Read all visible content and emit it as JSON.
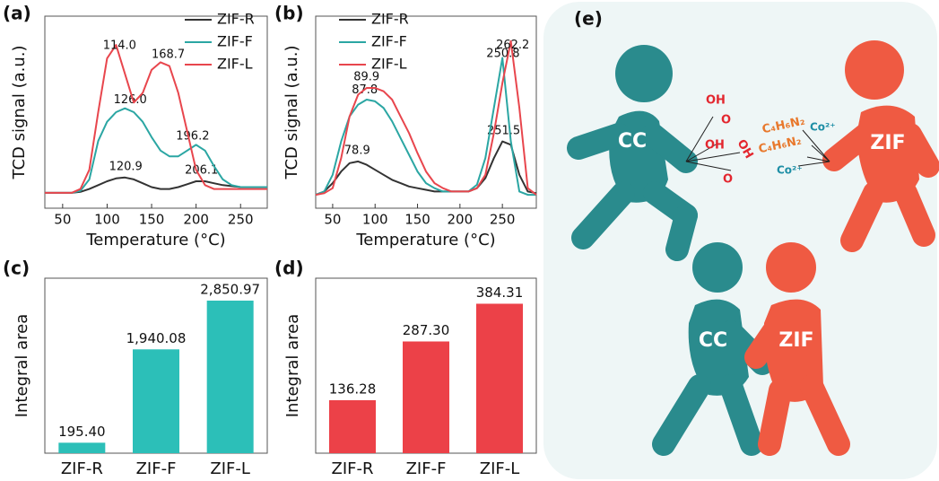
{
  "chart_data": [
    {
      "type": "line",
      "label": "(a)",
      "x_label": "Temperature (°C)",
      "y_label": "TCD signal (a.u.)",
      "x": [
        30,
        40,
        50,
        60,
        70,
        80,
        90,
        100,
        110,
        120,
        130,
        140,
        150,
        160,
        170,
        180,
        190,
        200,
        210,
        220,
        230,
        240,
        250,
        260,
        270,
        280
      ],
      "xlim": [
        30,
        280
      ],
      "xticks": [
        50,
        100,
        150,
        200,
        250
      ],
      "ylim": [
        0,
        1
      ],
      "legend": "upper right",
      "series": [
        {
          "name": "ZIF-R",
          "color": "#333333",
          "values": [
            0.08,
            0.08,
            0.08,
            0.08,
            0.085,
            0.1,
            0.12,
            0.14,
            0.155,
            0.16,
            0.15,
            0.13,
            0.11,
            0.1,
            0.1,
            0.11,
            0.125,
            0.14,
            0.14,
            0.13,
            0.12,
            0.115,
            0.11,
            0.11,
            0.11,
            0.11
          ],
          "peaks": [
            {
              "value": 120.9,
              "label": "120.9"
            },
            {
              "value": 206.1,
              "label": "206.1"
            }
          ]
        },
        {
          "name": "ZIF-F",
          "color": "#2ba6a3",
          "values": [
            0.08,
            0.08,
            0.08,
            0.08,
            0.09,
            0.15,
            0.35,
            0.45,
            0.5,
            0.52,
            0.5,
            0.45,
            0.37,
            0.3,
            0.27,
            0.27,
            0.3,
            0.33,
            0.3,
            0.22,
            0.15,
            0.12,
            0.11,
            0.11,
            0.11,
            0.11
          ],
          "peaks": [
            {
              "value": 126.0,
              "label": "126.0"
            },
            {
              "value": 196.2,
              "label": "196.2"
            }
          ]
        },
        {
          "name": "ZIF-L",
          "color": "#e8464d",
          "values": [
            0.08,
            0.08,
            0.08,
            0.08,
            0.1,
            0.2,
            0.5,
            0.78,
            0.85,
            0.7,
            0.55,
            0.6,
            0.72,
            0.76,
            0.74,
            0.6,
            0.4,
            0.2,
            0.12,
            0.1,
            0.1,
            0.1,
            0.1,
            0.1,
            0.1,
            0.1
          ],
          "peaks": [
            {
              "value": 114.0,
              "label": "114.0"
            },
            {
              "value": 168.7,
              "label": "168.7"
            }
          ]
        }
      ]
    },
    {
      "type": "line",
      "label": "(b)",
      "x_label": "Temperature (°C)",
      "y_label": "TCD signal (a.u.)",
      "x": [
        30,
        40,
        50,
        60,
        70,
        80,
        90,
        100,
        110,
        120,
        130,
        140,
        150,
        160,
        170,
        180,
        190,
        200,
        210,
        220,
        230,
        240,
        250,
        260,
        270,
        280,
        290
      ],
      "xlim": [
        30,
        290
      ],
      "xticks": [
        50,
        100,
        150,
        200,
        250
      ],
      "ylim": [
        0,
        1.15
      ],
      "legend": "upper left",
      "series": [
        {
          "name": "ZIF-R",
          "color": "#333333",
          "values": [
            0.08,
            0.1,
            0.15,
            0.22,
            0.27,
            0.28,
            0.26,
            0.23,
            0.2,
            0.17,
            0.15,
            0.13,
            0.12,
            0.11,
            0.1,
            0.1,
            0.1,
            0.1,
            0.1,
            0.12,
            0.18,
            0.3,
            0.4,
            0.38,
            0.2,
            0.1,
            0.09
          ],
          "peaks": [
            {
              "value": 78.9,
              "label": "78.9"
            },
            {
              "value": 251.5,
              "label": "251.5"
            }
          ]
        },
        {
          "name": "ZIF-F",
          "color": "#2ba6a3",
          "values": [
            0.08,
            0.1,
            0.2,
            0.4,
            0.55,
            0.62,
            0.65,
            0.64,
            0.6,
            0.52,
            0.42,
            0.32,
            0.22,
            0.15,
            0.12,
            0.1,
            0.1,
            0.1,
            0.1,
            0.14,
            0.3,
            0.6,
            0.9,
            0.4,
            0.1,
            0.08,
            0.08
          ],
          "peaks": [
            {
              "value": 87.8,
              "label": "87.8"
            },
            {
              "value": 250.8,
              "label": "250.8"
            }
          ]
        },
        {
          "name": "ZIF-L",
          "color": "#e8464d",
          "values": [
            0.08,
            0.09,
            0.12,
            0.3,
            0.55,
            0.68,
            0.72,
            0.72,
            0.7,
            0.65,
            0.55,
            0.45,
            0.33,
            0.22,
            0.15,
            0.12,
            0.1,
            0.1,
            0.1,
            0.12,
            0.2,
            0.45,
            0.75,
            1.0,
            0.6,
            0.12,
            0.08
          ],
          "peaks": [
            {
              "value": 89.9,
              "label": "89.9"
            },
            {
              "value": 262.2,
              "label": "262.2"
            }
          ]
        }
      ]
    },
    {
      "type": "bar",
      "label": "(c)",
      "y_label": "Integral area",
      "color": "#2cbfb8",
      "categories": [
        "ZIF-R",
        "ZIF-F",
        "ZIF-L"
      ],
      "values": [
        195.4,
        1940.08,
        2850.97
      ],
      "value_labels": [
        "195.40",
        "1,940.08",
        "2,850.97"
      ],
      "ylim": [
        0,
        3270
      ]
    },
    {
      "type": "bar",
      "label": "(d)",
      "y_label": "Integral area",
      "color": "#ec4148",
      "categories": [
        "ZIF-R",
        "ZIF-F",
        "ZIF-L"
      ],
      "values": [
        136.28,
        287.3,
        384.31
      ],
      "value_labels": [
        "136.28",
        "287.30",
        "384.31"
      ],
      "ylim": [
        0,
        450
      ]
    }
  ],
  "diagram": {
    "label": "(e)",
    "figures": [
      "CC",
      "ZIF",
      "CC",
      "ZIF"
    ],
    "left_groups": [
      "OH",
      "O",
      "OH",
      "OH",
      "O"
    ],
    "right_groups": [
      "C₄H₆N₂",
      "C₄H₆N₂",
      "Co²⁺",
      "Co²⁺"
    ]
  }
}
